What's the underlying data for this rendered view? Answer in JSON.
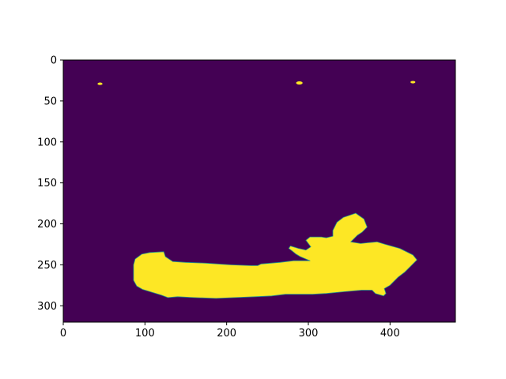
{
  "chart_data": {
    "type": "heatmap",
    "title": "",
    "xlabel": "",
    "ylabel": "",
    "image_size": [
      480,
      320
    ],
    "xlim": [
      0,
      480
    ],
    "ylim": [
      320,
      0
    ],
    "y_axis_inverted": true,
    "grid": false,
    "legend": "none",
    "colormap": "viridis",
    "values_shown": [
      0,
      1
    ],
    "colors": {
      "background": "#440154",
      "foreground": "#fde725",
      "edge": "#21918c"
    },
    "x_ticks": [
      0,
      100,
      200,
      300,
      400
    ],
    "y_ticks": [
      0,
      50,
      100,
      150,
      200,
      250,
      300
    ],
    "x_tick_labels": [
      "0",
      "100",
      "200",
      "300",
      "400"
    ],
    "y_tick_labels": [
      "0",
      "50",
      "100",
      "150",
      "200",
      "250",
      "300"
    ],
    "regions": [
      {
        "value": 1,
        "shape": "polygon",
        "points": [
          [
            88,
            243
          ],
          [
            96,
            237
          ],
          [
            106,
            235
          ],
          [
            123,
            234
          ],
          [
            125,
            240
          ],
          [
            134,
            246
          ],
          [
            150,
            247
          ],
          [
            175,
            248
          ],
          [
            205,
            250
          ],
          [
            230,
            251
          ],
          [
            238,
            251
          ],
          [
            242,
            249
          ],
          [
            265,
            247
          ],
          [
            282,
            245
          ],
          [
            302,
            245
          ],
          [
            290,
            240
          ],
          [
            285,
            237
          ],
          [
            280,
            233
          ],
          [
            276,
            230
          ],
          [
            278,
            227
          ],
          [
            288,
            230
          ],
          [
            297,
            232
          ],
          [
            303,
            228
          ],
          [
            297,
            220
          ],
          [
            302,
            216
          ],
          [
            316,
            216
          ],
          [
            322,
            217
          ],
          [
            330,
            215
          ],
          [
            330,
            208
          ],
          [
            335,
            198
          ],
          [
            343,
            192
          ],
          [
            358,
            187
          ],
          [
            368,
            194
          ],
          [
            372,
            204
          ],
          [
            366,
            210
          ],
          [
            360,
            214
          ],
          [
            352,
            222
          ],
          [
            364,
            224
          ],
          [
            373,
            223
          ],
          [
            384,
            222
          ],
          [
            394,
            225
          ],
          [
            412,
            230
          ],
          [
            428,
            238
          ],
          [
            433,
            244
          ],
          [
            426,
            251
          ],
          [
            418,
            259
          ],
          [
            410,
            265
          ],
          [
            400,
            275
          ],
          [
            393,
            279
          ],
          [
            395,
            285
          ],
          [
            392,
            288
          ],
          [
            382,
            285
          ],
          [
            378,
            281
          ],
          [
            365,
            281
          ],
          [
            342,
            283
          ],
          [
            322,
            285
          ],
          [
            305,
            286
          ],
          [
            290,
            286
          ],
          [
            272,
            286
          ],
          [
            255,
            288
          ],
          [
            235,
            289
          ],
          [
            210,
            290
          ],
          [
            187,
            291
          ],
          [
            160,
            290
          ],
          [
            140,
            289
          ],
          [
            128,
            290
          ],
          [
            120,
            287
          ],
          [
            110,
            284
          ],
          [
            97,
            280
          ],
          [
            90,
            276
          ],
          [
            86,
            269
          ],
          [
            86,
            258
          ],
          [
            86,
            250
          ]
        ]
      },
      {
        "value": 1,
        "shape": "ellipse",
        "cx": 45,
        "cy": 29,
        "rx": 3,
        "ry": 1.5
      },
      {
        "value": 1,
        "shape": "ellipse",
        "cx": 289,
        "cy": 28,
        "rx": 4,
        "ry": 2
      },
      {
        "value": 1,
        "shape": "ellipse",
        "cx": 428,
        "cy": 27,
        "rx": 3,
        "ry": 1.5
      }
    ]
  }
}
